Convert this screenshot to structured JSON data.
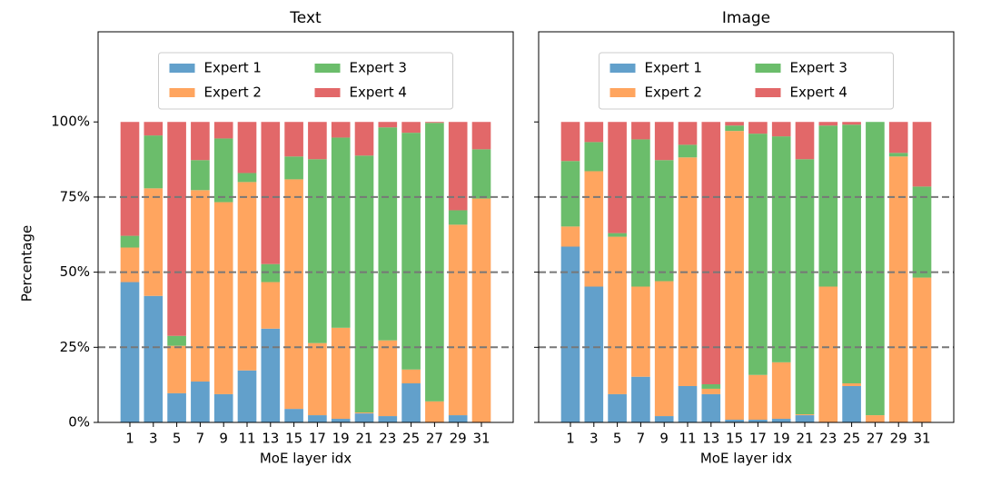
{
  "charts": [
    {
      "type": "stacked-bar",
      "title": "Text",
      "xlabel": "MoE layer idx",
      "ylabel": "Percentage",
      "categories": [
        "1",
        "3",
        "5",
        "7",
        "9",
        "11",
        "13",
        "15",
        "17",
        "19",
        "21",
        "23",
        "25",
        "27",
        "29",
        "31"
      ],
      "ylim": [
        0,
        130
      ],
      "yticks": [
        {
          "value": 0,
          "label": "0%"
        },
        {
          "value": 25,
          "label": "25%"
        },
        {
          "value": 50,
          "label": "50%"
        },
        {
          "value": 75,
          "label": "75%"
        },
        {
          "value": 100,
          "label": "100%"
        }
      ],
      "hlines": [
        25,
        50,
        75
      ],
      "series": [
        {
          "name": "Expert 1",
          "color": "#62a0cb",
          "values": [
            46.7,
            42.1,
            9.7,
            13.6,
            9.4,
            17.3,
            31.2,
            4.5,
            2.4,
            1.2,
            3,
            2.1,
            13,
            0,
            2.4,
            0
          ]
        },
        {
          "name": "Expert 2",
          "color": "#ffa55f",
          "values": [
            11.5,
            35.8,
            15.8,
            63.7,
            63.9,
            62.7,
            15.5,
            76.4,
            24,
            30.3,
            0.3,
            25.2,
            4.6,
            7,
            63.4,
            74.5
          ]
        },
        {
          "name": "Expert 3",
          "color": "#6bbd6b",
          "values": [
            3.9,
            17.6,
            3.3,
            10,
            21.2,
            3,
            6,
            7.6,
            61.2,
            63.3,
            85.5,
            70.9,
            78.8,
            92.7,
            4.8,
            16.4
          ]
        },
        {
          "name": "Expert 4",
          "color": "#e26869",
          "values": [
            37.9,
            4.5,
            71.2,
            12.7,
            5.5,
            17,
            47.3,
            11.5,
            12.4,
            5.2,
            11.2,
            1.8,
            3.6,
            0.3,
            29.4,
            9.1
          ]
        }
      ]
    },
    {
      "type": "stacked-bar",
      "title": "Image",
      "xlabel": "MoE layer idx",
      "categories": [
        "1",
        "3",
        "5",
        "7",
        "9",
        "11",
        "13",
        "15",
        "17",
        "19",
        "21",
        "23",
        "25",
        "27",
        "29",
        "31"
      ],
      "ylim": [
        0,
        130
      ],
      "yticks": [
        0,
        25,
        50,
        75,
        100
      ],
      "hlines": [
        25,
        50,
        75
      ],
      "series": [
        {
          "name": "Expert 1",
          "color": "#62a0cb",
          "values": [
            58.5,
            45.2,
            9.4,
            15.2,
            2.1,
            12.1,
            9.4,
            0.9,
            0.9,
            1.2,
            2.4,
            0,
            12.1,
            0,
            0,
            0
          ]
        },
        {
          "name": "Expert 2",
          "color": "#ffa55f",
          "values": [
            6.7,
            38.4,
            52.4,
            30,
            44.9,
            76.1,
            1.8,
            96.1,
            14.9,
            18.8,
            0.3,
            45.2,
            0.9,
            2.4,
            88.5,
            48.2
          ]
        },
        {
          "name": "Expert 3",
          "color": "#6bbd6b",
          "values": [
            21.8,
            9.7,
            1.2,
            49,
            40.3,
            4.2,
            1.5,
            1.8,
            80.3,
            75.2,
            84.9,
            53.6,
            86.1,
            97.6,
            1.2,
            30.3
          ]
        },
        {
          "name": "Expert 4",
          "color": "#e26869",
          "values": [
            13,
            6.7,
            37,
            5.8,
            12.7,
            7.6,
            87.3,
            1.2,
            3.9,
            4.8,
            12.4,
            1.2,
            0.9,
            0,
            10.3,
            21.5
          ]
        }
      ]
    }
  ]
}
